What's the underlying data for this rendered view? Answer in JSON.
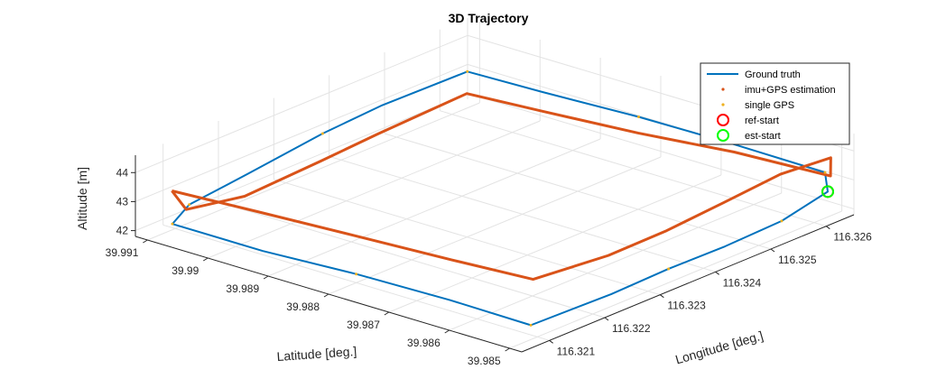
{
  "chart_data": {
    "type": "line3d",
    "title": "3D Trajectory",
    "xlabel": "Longitude [deg.]",
    "ylabel": "Latitude [deg.]",
    "zlabel": "Altitude [m]",
    "x_ticks": [
      "116.321",
      "116.322",
      "116.323",
      "116.324",
      "116.325",
      "116.326"
    ],
    "y_ticks": [
      "39.985",
      "39.986",
      "39.987",
      "39.988",
      "39.989",
      "39.99",
      "39.991"
    ],
    "z_ticks": [
      "42",
      "43",
      "44"
    ],
    "xlim": [
      116.3205,
      116.3265
    ],
    "ylim": [
      39.9848,
      39.9912
    ],
    "zlim": [
      41.8,
      44.6
    ],
    "grid": true,
    "legend_position": "top-right",
    "legend": [
      {
        "label": "Ground truth",
        "color": "#0072BD",
        "marker": "line"
      },
      {
        "label": "imu+GPS estimation",
        "color": "#D95319",
        "marker": "dot"
      },
      {
        "label": "single GPS",
        "color": "#EDB120",
        "marker": "dot"
      },
      {
        "label": "ref-start",
        "color": "#FF0000",
        "marker": "circle"
      },
      {
        "label": "est-start",
        "color": "#00FF00",
        "marker": "circle"
      }
    ],
    "series": [
      {
        "name": "Ground truth",
        "color": "#0072BD",
        "points": [
          [
            116.32095,
            39.991,
            42.0
          ],
          [
            116.32095,
            39.9895,
            42.0
          ],
          [
            116.321,
            39.988,
            42.1
          ],
          [
            116.32105,
            39.9865,
            42.1
          ],
          [
            116.3211,
            39.9852,
            42.0
          ],
          [
            116.3225,
            39.98515,
            42.0
          ],
          [
            116.3235,
            39.98512,
            42.1
          ],
          [
            116.3245,
            39.9851,
            42.1
          ],
          [
            116.3255,
            39.98508,
            42.2
          ],
          [
            116.3263,
            39.98505,
            42.6
          ],
          [
            116.32625,
            39.98505,
            43.3
          ],
          [
            116.3262,
            39.9865,
            43.4
          ],
          [
            116.3261,
            39.988,
            43.5
          ],
          [
            116.326,
            39.9895,
            43.5
          ],
          [
            116.32595,
            39.9907,
            43.5
          ],
          [
            116.3245,
            39.9908,
            43.4
          ],
          [
            116.3235,
            39.99085,
            43.2
          ],
          [
            116.3222,
            39.9909,
            42.8
          ],
          [
            116.3212,
            39.99095,
            42.5
          ],
          [
            116.32095,
            39.991,
            42.0
          ]
        ]
      },
      {
        "name": "imu+GPS estimation",
        "color": "#D95319",
        "points": [
          [
            116.32105,
            39.9911,
            43.0
          ],
          [
            116.3211,
            39.9897,
            43.1
          ],
          [
            116.32115,
            39.9882,
            43.2
          ],
          [
            116.3212,
            39.9866,
            43.3
          ],
          [
            116.32125,
            39.9853,
            43.4
          ],
          [
            116.3225,
            39.9852,
            43.3
          ],
          [
            116.3235,
            39.98515,
            43.4
          ],
          [
            116.3245,
            39.98512,
            43.6
          ],
          [
            116.3255,
            39.9851,
            43.8
          ],
          [
            116.3263,
            39.985,
            43.8
          ],
          [
            116.32635,
            39.98505,
            43.1
          ],
          [
            116.3263,
            39.9866,
            43.0
          ],
          [
            116.3262,
            39.9881,
            42.8
          ],
          [
            116.3261,
            39.9896,
            42.7
          ],
          [
            116.32605,
            39.9908,
            42.6
          ],
          [
            116.3245,
            39.99085,
            42.4
          ],
          [
            116.3235,
            39.9909,
            42.2
          ],
          [
            116.3222,
            39.99095,
            42.0
          ],
          [
            116.3212,
            39.991,
            42.3
          ],
          [
            116.32105,
            39.9911,
            43.0
          ]
        ]
      }
    ],
    "ref_start": [
      116.3263,
      39.98505,
      42.6
    ],
    "est_start": [
      116.3263,
      39.98505,
      42.6
    ]
  }
}
